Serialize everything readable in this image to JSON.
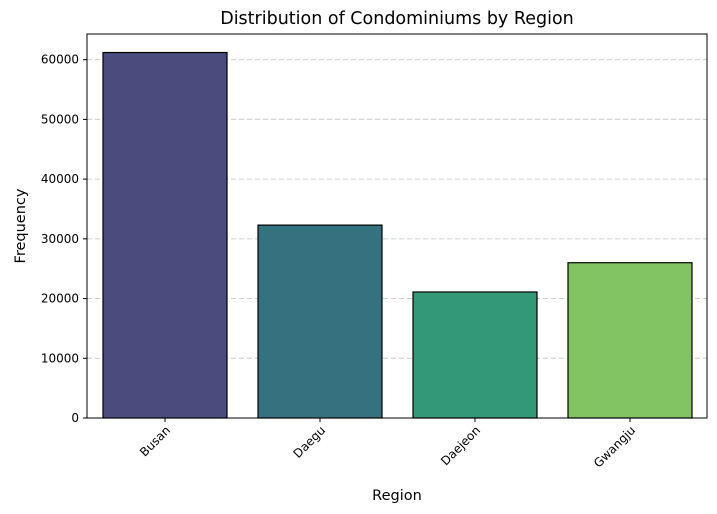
{
  "chart_data": {
    "type": "bar",
    "title": "Distribution of Condominiums by Region",
    "xlabel": "Region",
    "ylabel": "Frequency",
    "categories": [
      "Busan",
      "Daegu",
      "Daejeon",
      "Gwangju"
    ],
    "values": [
      61200,
      32300,
      21100,
      26000
    ],
    "colors": [
      "#4a4c7d",
      "#35727f",
      "#339877",
      "#82c363"
    ],
    "ylim": [
      0,
      64300
    ],
    "yticks": [
      0,
      10000,
      20000,
      30000,
      40000,
      50000,
      60000
    ],
    "ytick_labels": [
      "0",
      "10000",
      "20000",
      "30000",
      "40000",
      "50000",
      "60000"
    ],
    "grid": "y-dashed",
    "legend": "none"
  }
}
